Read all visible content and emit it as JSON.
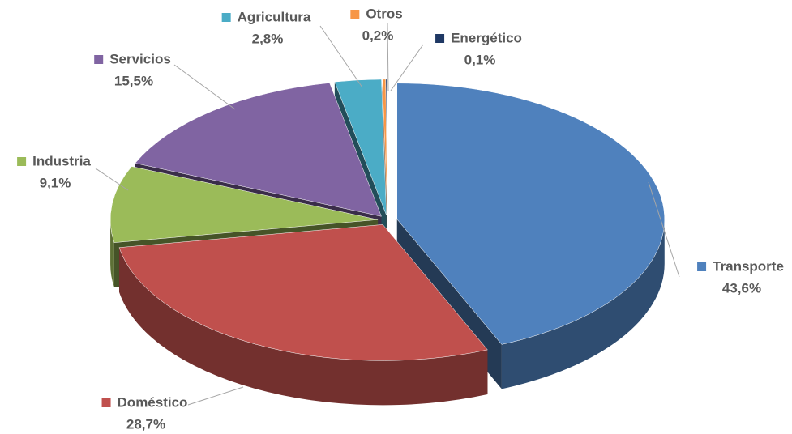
{
  "chart_data": {
    "type": "pie3d",
    "categories": [
      "Transporte",
      "Doméstico",
      "Industria",
      "Servicios",
      "Agricultura",
      "Otros",
      "Energético"
    ],
    "values": [
      43.6,
      28.7,
      9.1,
      15.5,
      2.8,
      0.2,
      0.1
    ],
    "value_labels": [
      "43,6%",
      "28,7%",
      "9,1%",
      "15,5%",
      "2,8%",
      "0,2%",
      "0,1%"
    ],
    "colors": [
      "#4f81bd",
      "#c0504d",
      "#9bbb59",
      "#8064a2",
      "#4bacc6",
      "#f79646",
      "#1f3864"
    ]
  }
}
